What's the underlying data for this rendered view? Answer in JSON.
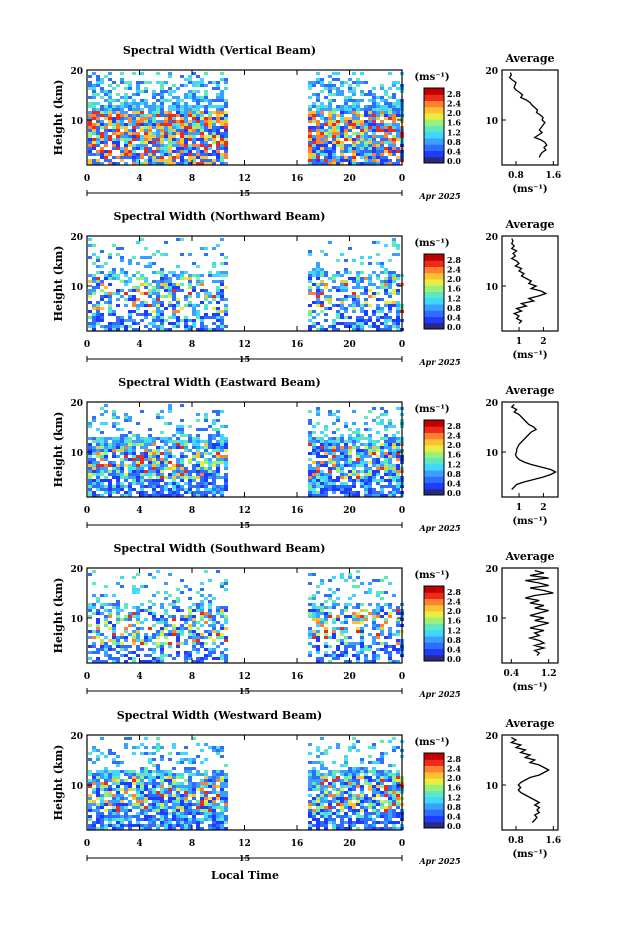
{
  "figure": {
    "x_axis_label": "Local Time",
    "date_label": "Apr 2025",
    "day_label": "15"
  },
  "colorbar": {
    "unit_label": "(ms⁻¹)",
    "ticks": [
      "2.8",
      "2.4",
      "2.0",
      "1.6",
      "1.2",
      "0.8",
      "0.4",
      "0.0"
    ],
    "colors": [
      "#2a2a80",
      "#1e3cff",
      "#2f6dff",
      "#3aa0ff",
      "#3fd6ff",
      "#5fe8c0",
      "#9af07a",
      "#e8ee40",
      "#ffc030",
      "#ff8030",
      "#ee2a1a",
      "#c00000"
    ]
  },
  "chart_data": [
    {
      "type": "heatmap",
      "title": "Spectral Width (Vertical Beam)",
      "xlabel": "",
      "ylabel": "Height (km)",
      "x_ticks": [
        "0",
        "4",
        "8",
        "12",
        "16",
        "20",
        "0"
      ],
      "xlim": [
        0,
        24
      ],
      "y_ticks": [
        "10",
        "20"
      ],
      "ylim": [
        1,
        20
      ],
      "data_gap": [
        10.5,
        16.8
      ],
      "profile": {
        "title": "Average",
        "x_ticks": [
          "0.8",
          "1.6"
        ],
        "xlim": [
          0.5,
          1.7
        ],
        "y_ticks": [
          "10",
          "20"
        ],
        "ylim": [
          1,
          20
        ],
        "xlabel": "(ms⁻¹)",
        "points": [
          [
            0.68,
            19.5
          ],
          [
            0.7,
            19
          ],
          [
            0.66,
            18.5
          ],
          [
            0.72,
            18
          ],
          [
            0.8,
            17.5
          ],
          [
            0.78,
            17
          ],
          [
            0.76,
            16.5
          ],
          [
            0.8,
            16
          ],
          [
            0.88,
            15.5
          ],
          [
            0.94,
            15
          ],
          [
            0.9,
            14.5
          ],
          [
            1.02,
            14
          ],
          [
            1.1,
            13.5
          ],
          [
            1.14,
            13
          ],
          [
            1.2,
            12.5
          ],
          [
            1.26,
            12
          ],
          [
            1.24,
            11.5
          ],
          [
            1.32,
            11
          ],
          [
            1.38,
            10.5
          ],
          [
            1.36,
            10
          ],
          [
            1.42,
            9.5
          ],
          [
            1.38,
            9
          ],
          [
            1.34,
            8.5
          ],
          [
            1.3,
            8
          ],
          [
            1.36,
            7.5
          ],
          [
            1.28,
            7
          ],
          [
            1.2,
            6.5
          ],
          [
            1.34,
            6
          ],
          [
            1.42,
            5.5
          ],
          [
            1.46,
            5
          ],
          [
            1.4,
            4.5
          ],
          [
            1.44,
            4
          ],
          [
            1.36,
            3.5
          ],
          [
            1.32,
            3
          ],
          [
            1.3,
            2.5
          ]
        ]
      }
    },
    {
      "type": "heatmap",
      "title": "Spectral Width (Northward Beam)",
      "xlabel": "",
      "ylabel": "Height (km)",
      "x_ticks": [
        "0",
        "4",
        "8",
        "12",
        "16",
        "20",
        "0"
      ],
      "xlim": [
        0,
        24
      ],
      "y_ticks": [
        "10",
        "20"
      ],
      "ylim": [
        1,
        20
      ],
      "data_gap": [
        10.5,
        16.8
      ],
      "profile": {
        "title": "Average",
        "x_ticks": [
          "1",
          "2"
        ],
        "xlim": [
          0.3,
          2.6
        ],
        "y_ticks": [
          "10",
          "20"
        ],
        "ylim": [
          1,
          20
        ],
        "xlabel": "(ms⁻¹)",
        "points": [
          [
            0.7,
            19.5
          ],
          [
            0.75,
            19
          ],
          [
            0.7,
            18.5
          ],
          [
            0.8,
            18
          ],
          [
            0.7,
            17.5
          ],
          [
            0.9,
            17
          ],
          [
            0.75,
            16.5
          ],
          [
            0.85,
            16
          ],
          [
            0.7,
            15.5
          ],
          [
            0.9,
            15
          ],
          [
            1.0,
            14.5
          ],
          [
            0.85,
            14
          ],
          [
            1.1,
            13.5
          ],
          [
            1.0,
            13
          ],
          [
            1.2,
            12.5
          ],
          [
            1.1,
            12
          ],
          [
            1.3,
            11.5
          ],
          [
            1.5,
            11
          ],
          [
            1.4,
            10.5
          ],
          [
            1.7,
            10
          ],
          [
            1.5,
            9.5
          ],
          [
            1.9,
            9
          ],
          [
            2.1,
            8.5
          ],
          [
            1.8,
            8
          ],
          [
            1.4,
            7.5
          ],
          [
            1.6,
            7
          ],
          [
            1.1,
            6.5
          ],
          [
            1.3,
            6
          ],
          [
            0.9,
            5.5
          ],
          [
            1.1,
            5
          ],
          [
            0.8,
            4.5
          ],
          [
            1.0,
            4
          ],
          [
            0.9,
            3.5
          ],
          [
            1.1,
            3
          ],
          [
            1.0,
            2.5
          ]
        ]
      }
    },
    {
      "type": "heatmap",
      "title": "Spectral Width (Eastward Beam)",
      "xlabel": "",
      "ylabel": "Height (km)",
      "x_ticks": [
        "0",
        "4",
        "8",
        "12",
        "16",
        "20",
        "0"
      ],
      "xlim": [
        0,
        24
      ],
      "y_ticks": [
        "10",
        "20"
      ],
      "ylim": [
        1,
        20
      ],
      "data_gap": [
        10.5,
        16.8
      ],
      "profile": {
        "title": "Average",
        "x_ticks": [
          "1",
          "2"
        ],
        "xlim": [
          0.3,
          2.6
        ],
        "y_ticks": [
          "10",
          "20"
        ],
        "ylim": [
          1,
          20
        ],
        "xlabel": "(ms⁻¹)",
        "points": [
          [
            0.8,
            19.5
          ],
          [
            0.7,
            19
          ],
          [
            0.9,
            18.5
          ],
          [
            0.8,
            18
          ],
          [
            1.0,
            17.5
          ],
          [
            1.1,
            17
          ],
          [
            1.2,
            16.5
          ],
          [
            1.3,
            16
          ],
          [
            1.4,
            15.5
          ],
          [
            1.6,
            15
          ],
          [
            1.7,
            14.5
          ],
          [
            1.5,
            14
          ],
          [
            1.4,
            13.5
          ],
          [
            1.3,
            13
          ],
          [
            1.2,
            12.5
          ],
          [
            1.1,
            12
          ],
          [
            1.0,
            11.5
          ],
          [
            0.95,
            11
          ],
          [
            0.9,
            10.5
          ],
          [
            0.9,
            10
          ],
          [
            0.85,
            9.5
          ],
          [
            0.9,
            9
          ],
          [
            1.0,
            8.5
          ],
          [
            1.2,
            8
          ],
          [
            1.5,
            7.5
          ],
          [
            1.9,
            7
          ],
          [
            2.3,
            6.5
          ],
          [
            2.5,
            6
          ],
          [
            2.3,
            5.5
          ],
          [
            2.0,
            5
          ],
          [
            1.6,
            4.5
          ],
          [
            1.2,
            4
          ],
          [
            0.9,
            3.5
          ],
          [
            0.8,
            3
          ],
          [
            0.7,
            2.5
          ]
        ]
      }
    },
    {
      "type": "heatmap",
      "title": "Spectral Width (Southward Beam)",
      "xlabel": "",
      "ylabel": "Height (km)",
      "x_ticks": [
        "0",
        "4",
        "8",
        "12",
        "16",
        "20",
        "0"
      ],
      "xlim": [
        0,
        24
      ],
      "y_ticks": [
        "10",
        "20"
      ],
      "ylim": [
        1,
        20
      ],
      "data_gap": [
        10.5,
        16.8
      ],
      "profile": {
        "title": "Average",
        "x_ticks": [
          "0.4",
          "1.2"
        ],
        "xlim": [
          0.2,
          1.4
        ],
        "y_ticks": [
          "10",
          "20"
        ],
        "ylim": [
          1,
          20
        ],
        "xlabel": "(ms⁻¹)",
        "points": [
          [
            0.9,
            19.5
          ],
          [
            1.1,
            19
          ],
          [
            0.8,
            18.5
          ],
          [
            1.2,
            18
          ],
          [
            0.7,
            17.5
          ],
          [
            1.0,
            17
          ],
          [
            1.2,
            16.5
          ],
          [
            0.8,
            16
          ],
          [
            1.1,
            15.5
          ],
          [
            1.3,
            15
          ],
          [
            0.9,
            14.5
          ],
          [
            0.7,
            14
          ],
          [
            1.0,
            13.5
          ],
          [
            0.8,
            13
          ],
          [
            1.1,
            12.5
          ],
          [
            0.9,
            12
          ],
          [
            1.2,
            11.5
          ],
          [
            1.0,
            11
          ],
          [
            0.8,
            10.5
          ],
          [
            1.1,
            10
          ],
          [
            0.9,
            9.5
          ],
          [
            1.2,
            9
          ],
          [
            1.0,
            8.5
          ],
          [
            0.8,
            8
          ],
          [
            1.1,
            7.5
          ],
          [
            0.9,
            7
          ],
          [
            1.0,
            6.5
          ],
          [
            0.8,
            6
          ],
          [
            1.0,
            5.5
          ],
          [
            1.1,
            5
          ],
          [
            0.9,
            4.5
          ],
          [
            1.1,
            4
          ],
          [
            0.9,
            3.5
          ],
          [
            1.0,
            3
          ],
          [
            0.95,
            2.5
          ]
        ]
      }
    },
    {
      "type": "heatmap",
      "title": "Spectral Width (Westward Beam)",
      "xlabel": "",
      "ylabel": "Height (km)",
      "x_ticks": [
        "0",
        "4",
        "8",
        "12",
        "16",
        "20",
        "0"
      ],
      "xlim": [
        0,
        24
      ],
      "y_ticks": [
        "10",
        "20"
      ],
      "ylim": [
        1,
        20
      ],
      "data_gap": [
        10.5,
        16.8
      ],
      "profile": {
        "title": "Average",
        "x_ticks": [
          "0.8",
          "1.6"
        ],
        "xlim": [
          0.5,
          1.7
        ],
        "y_ticks": [
          "10",
          "20"
        ],
        "ylim": [
          1,
          20
        ],
        "xlabel": "(ms⁻¹)",
        "points": [
          [
            0.7,
            19.5
          ],
          [
            0.8,
            19
          ],
          [
            0.7,
            18.5
          ],
          [
            0.9,
            18
          ],
          [
            0.8,
            17.5
          ],
          [
            1.0,
            17
          ],
          [
            0.9,
            16.5
          ],
          [
            1.1,
            16
          ],
          [
            1.0,
            15.5
          ],
          [
            1.2,
            15
          ],
          [
            1.1,
            14.5
          ],
          [
            1.3,
            14
          ],
          [
            1.4,
            13.5
          ],
          [
            1.5,
            13
          ],
          [
            1.4,
            12.5
          ],
          [
            1.3,
            12
          ],
          [
            1.1,
            11.5
          ],
          [
            1.0,
            11
          ],
          [
            0.9,
            10.5
          ],
          [
            0.85,
            10
          ],
          [
            0.9,
            9.5
          ],
          [
            0.85,
            9
          ],
          [
            0.9,
            8.5
          ],
          [
            1.0,
            8
          ],
          [
            1.1,
            7.5
          ],
          [
            1.2,
            7
          ],
          [
            1.3,
            6.5
          ],
          [
            1.2,
            6
          ],
          [
            1.3,
            5.5
          ],
          [
            1.25,
            5
          ],
          [
            1.3,
            4.5
          ],
          [
            1.2,
            4
          ],
          [
            1.25,
            3.5
          ],
          [
            1.2,
            3
          ],
          [
            1.15,
            2.5
          ]
        ]
      }
    }
  ]
}
